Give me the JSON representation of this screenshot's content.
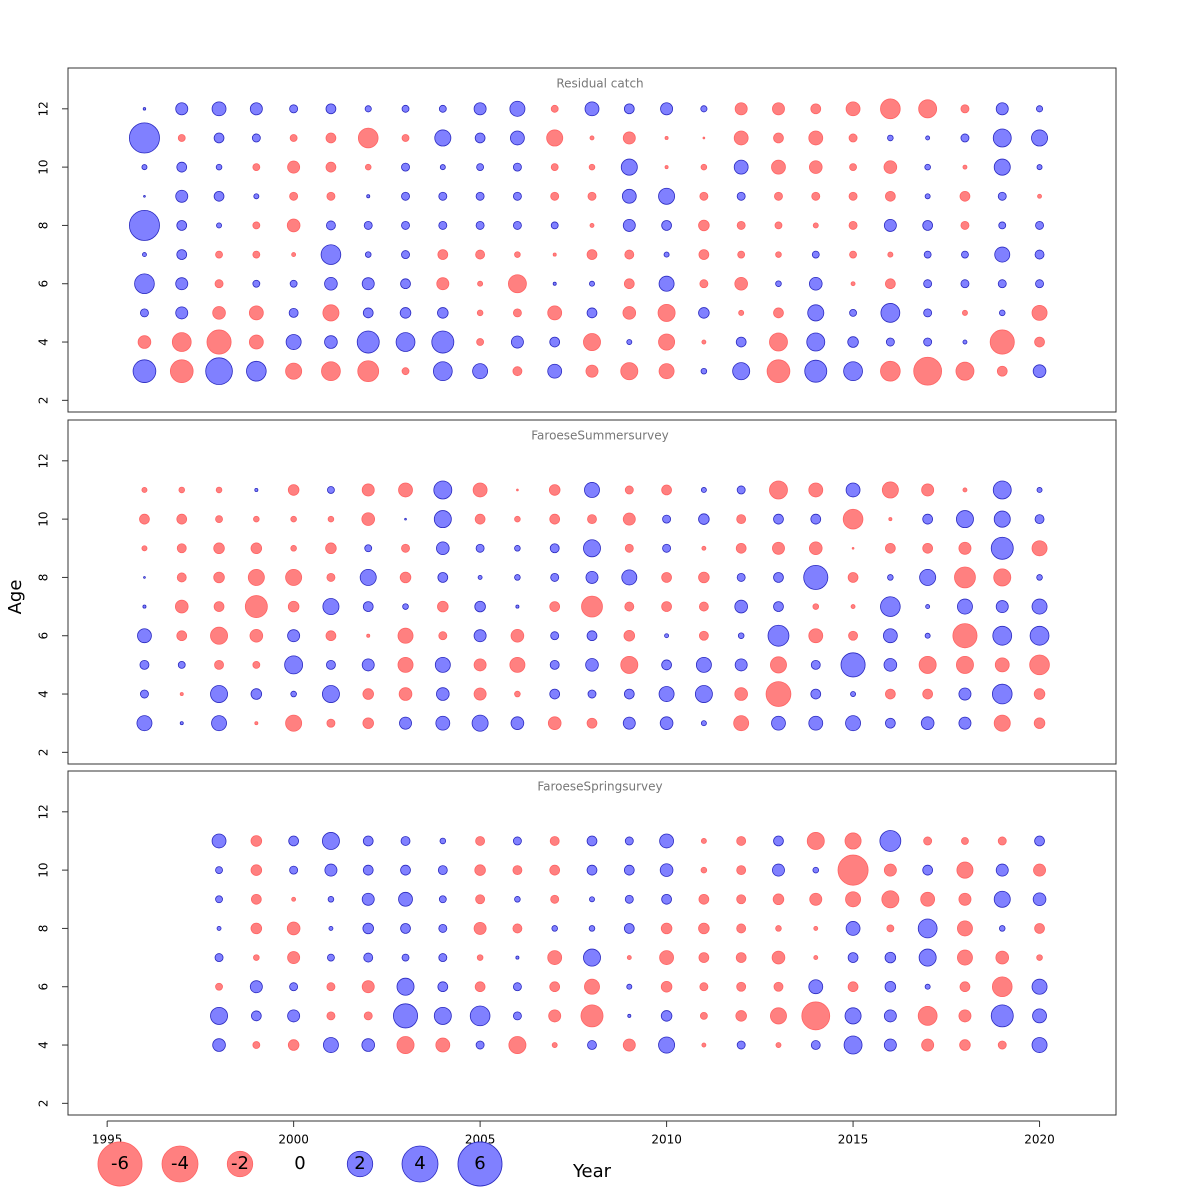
{
  "chart_data": [
    {
      "type": "bubble",
      "title": "Residual catch",
      "x": [
        1996,
        1997,
        1998,
        1999,
        2000,
        2001,
        2002,
        2003,
        2004,
        2005,
        2006,
        2007,
        2008,
        2009,
        2010,
        2011,
        2012,
        2013,
        2014,
        2015,
        2016,
        2017,
        2018,
        2019,
        2020
      ],
      "y": [
        12,
        11,
        10,
        9,
        8,
        7,
        6,
        5,
        4,
        3
      ],
      "values": [
        [
          0.02,
          0.45,
          0.6,
          0.45,
          0.2,
          0.3,
          0.12,
          0.15,
          0.15,
          0.45,
          0.7,
          -0.15,
          0.6,
          0.3,
          0.45,
          0.12,
          -0.45,
          -0.45,
          -0.3,
          -0.6,
          -1.2,
          -1.0,
          -0.2,
          0.45,
          0.12
        ],
        [
          2.8,
          -0.15,
          0.3,
          0.2,
          -0.15,
          -0.3,
          -1.2,
          -0.15,
          0.8,
          0.3,
          0.6,
          -0.8,
          -0.05,
          -0.45,
          -0.03,
          -0.01,
          -0.6,
          -0.3,
          -0.6,
          -0.2,
          0.1,
          0.05,
          0.2,
          1.0,
          0.8
        ],
        [
          0.08,
          0.3,
          0.1,
          -0.15,
          -0.45,
          -0.3,
          -0.1,
          0.2,
          0.08,
          0.15,
          0.2,
          -0.15,
          -0.1,
          0.8,
          -0.03,
          -0.1,
          0.6,
          -0.6,
          -0.5,
          -0.15,
          -0.5,
          0.1,
          -0.05,
          0.8,
          0.08
        ],
        [
          0.01,
          0.45,
          0.3,
          0.08,
          -0.2,
          -0.2,
          0.03,
          0.2,
          0.2,
          0.2,
          0.2,
          -0.2,
          -0.2,
          0.6,
          0.8,
          -0.2,
          0.2,
          -0.2,
          -0.2,
          -0.2,
          -0.3,
          0.08,
          -0.3,
          0.2,
          -0.05
        ],
        [
          2.8,
          0.3,
          0.08,
          -0.15,
          -0.5,
          0.25,
          0.2,
          0.2,
          0.2,
          0.2,
          0.2,
          0.15,
          -0.05,
          0.45,
          0.3,
          -0.35,
          -0.2,
          -0.15,
          -0.08,
          -0.2,
          0.45,
          0.3,
          -0.2,
          0.15,
          0.2
        ],
        [
          0.05,
          0.3,
          -0.15,
          -0.15,
          -0.05,
          1.2,
          0.1,
          0.2,
          -0.3,
          -0.25,
          -0.1,
          -0.03,
          -0.3,
          -0.25,
          0.08,
          -0.3,
          -0.15,
          -0.1,
          0.15,
          -0.15,
          -0.08,
          0.15,
          0.15,
          0.7,
          0.25
        ],
        [
          1.2,
          0.45,
          -0.2,
          0.15,
          0.15,
          0.5,
          0.45,
          0.3,
          -0.45,
          -0.08,
          -1.0,
          0.03,
          0.08,
          -0.3,
          0.7,
          -0.2,
          -0.5,
          0.1,
          0.5,
          -0.05,
          -0.3,
          0.2,
          0.2,
          0.2,
          0.2
        ],
        [
          0.2,
          0.45,
          -0.5,
          -0.6,
          0.25,
          -0.8,
          0.3,
          0.35,
          0.35,
          -0.1,
          -0.2,
          -0.6,
          0.3,
          -0.5,
          -0.9,
          0.35,
          -0.08,
          -0.3,
          0.8,
          0.15,
          1.1,
          0.2,
          -0.08,
          0.1,
          -0.7
        ],
        [
          -0.5,
          -1.1,
          -1.8,
          -0.6,
          0.7,
          0.5,
          1.5,
          1.1,
          1.5,
          -0.15,
          0.45,
          0.3,
          -0.9,
          0.08,
          -0.8,
          -0.05,
          0.3,
          -1.0,
          1.0,
          0.35,
          0.2,
          0.2,
          0.05,
          -1.8,
          -0.3
        ],
        [
          1.6,
          -1.6,
          2.2,
          1.2,
          -0.8,
          -1.1,
          -1.35,
          -0.15,
          1.1,
          0.7,
          -0.25,
          0.6,
          -0.45,
          -0.9,
          -0.7,
          0.1,
          0.9,
          -1.6,
          1.5,
          1.1,
          -1.2,
          -2.4,
          -1.0,
          -0.3,
          0.5
        ]
      ],
      "xlim": [
        1993.95,
        2022.05
      ],
      "ylim": [
        1.6,
        13.4
      ],
      "yticks": [
        2,
        4,
        6,
        8,
        10,
        12
      ]
    },
    {
      "type": "bubble",
      "title": "FaroeseSummersurvey",
      "x": [
        1996,
        1997,
        1998,
        1999,
        2000,
        2001,
        2002,
        2003,
        2004,
        2005,
        2006,
        2007,
        2008,
        2009,
        2010,
        2011,
        2012,
        2013,
        2014,
        2015,
        2016,
        2017,
        2018,
        2019,
        2020
      ],
      "y": [
        11,
        10,
        9,
        8,
        7,
        6,
        5,
        4,
        3
      ],
      "values": [
        [
          -0.08,
          -0.1,
          -0.1,
          0.03,
          -0.35,
          0.15,
          -0.45,
          -0.6,
          1.0,
          -0.6,
          -0.01,
          -0.35,
          0.7,
          -0.2,
          -0.3,
          0.08,
          0.2,
          -1.0,
          -0.6,
          0.6,
          -0.8,
          -0.45,
          -0.05,
          1.0,
          0.08
        ],
        [
          -0.3,
          -0.3,
          -0.15,
          -0.1,
          -0.1,
          -0.1,
          -0.5,
          0.01,
          0.9,
          -0.3,
          -0.1,
          -0.3,
          -0.25,
          -0.45,
          0.2,
          0.35,
          -0.25,
          0.3,
          0.3,
          -1.2,
          -0.03,
          0.3,
          0.9,
          0.8,
          0.25
        ],
        [
          -0.08,
          -0.25,
          -0.35,
          -0.35,
          -0.1,
          -0.35,
          0.15,
          -0.2,
          0.5,
          0.2,
          0.1,
          0.25,
          0.9,
          -0.2,
          0.2,
          -0.05,
          -0.3,
          -0.45,
          -0.5,
          -0.01,
          -0.3,
          -0.3,
          -0.45,
          1.5,
          -0.7
        ],
        [
          0.01,
          -0.25,
          -0.35,
          -0.8,
          -0.8,
          -0.2,
          0.8,
          -0.35,
          0.3,
          0.05,
          0.1,
          0.2,
          0.45,
          0.7,
          -0.3,
          -0.35,
          0.2,
          0.3,
          1.8,
          -0.3,
          0.1,
          0.8,
          -1.35,
          -0.9,
          0.1
        ],
        [
          0.03,
          -0.5,
          -0.3,
          -1.5,
          -0.35,
          0.8,
          0.3,
          0.1,
          -0.35,
          0.35,
          0.03,
          -0.3,
          -1.35,
          -0.25,
          -0.3,
          -0.25,
          0.5,
          0.3,
          -0.1,
          -0.05,
          1.2,
          0.05,
          0.7,
          0.45,
          0.7
        ],
        [
          0.6,
          -0.3,
          -0.9,
          -0.5,
          0.45,
          -0.3,
          -0.03,
          -0.7,
          -0.2,
          0.45,
          -0.5,
          0.2,
          0.3,
          -0.35,
          0.05,
          -0.25,
          0.1,
          1.35,
          -0.6,
          -0.25,
          0.6,
          0.08,
          -1.8,
          1.1,
          1.1
        ],
        [
          0.25,
          0.15,
          -0.25,
          -0.15,
          1.0,
          0.25,
          0.45,
          -0.7,
          0.7,
          -0.45,
          -0.7,
          0.25,
          0.5,
          -0.9,
          0.3,
          0.7,
          0.45,
          -0.8,
          0.25,
          1.8,
          0.5,
          -0.9,
          -0.9,
          -0.6,
          -1.2
        ],
        [
          0.2,
          -0.03,
          0.9,
          0.35,
          0.1,
          0.9,
          -0.35,
          -0.5,
          0.5,
          -0.45,
          -0.1,
          0.3,
          0.2,
          0.3,
          0.7,
          0.9,
          -0.5,
          -1.9,
          0.3,
          0.08,
          -0.3,
          -0.3,
          0.45,
          1.2,
          -0.35
        ],
        [
          0.7,
          0.03,
          0.7,
          -0.03,
          -0.8,
          -0.2,
          -0.35,
          0.45,
          0.6,
          0.8,
          0.5,
          -0.5,
          -0.3,
          0.45,
          0.5,
          0.08,
          -0.7,
          0.6,
          0.6,
          0.7,
          0.3,
          0.5,
          0.45,
          -0.8,
          -0.35
        ]
      ],
      "xlim": [
        1993.95,
        2022.05
      ],
      "ylim": [
        1.6,
        13.4
      ],
      "yticks": [
        2,
        4,
        6,
        8,
        10,
        12
      ]
    },
    {
      "type": "bubble",
      "title": "FaroeseSpringsurvey",
      "x": [
        1998,
        1999,
        2000,
        2001,
        2002,
        2003,
        2004,
        2005,
        2006,
        2007,
        2008,
        2009,
        2010,
        2011,
        2012,
        2013,
        2014,
        2015,
        2016,
        2017,
        2018,
        2019,
        2020
      ],
      "y": [
        11,
        10,
        9,
        8,
        7,
        6,
        5,
        4
      ],
      "values": [
        [
          0.6,
          -0.35,
          0.3,
          0.9,
          0.3,
          0.25,
          0.1,
          -0.25,
          0.2,
          -0.25,
          0.3,
          0.2,
          0.6,
          -0.08,
          -0.25,
          0.3,
          -0.9,
          -0.8,
          1.35,
          -0.2,
          -0.15,
          -0.2,
          0.3
        ],
        [
          0.15,
          -0.35,
          0.2,
          0.45,
          0.3,
          0.3,
          0.25,
          -0.35,
          -0.25,
          -0.3,
          0.3,
          0.3,
          0.5,
          -0.1,
          -0.25,
          0.45,
          0.1,
          -2.8,
          -0.45,
          0.3,
          -0.8,
          0.45,
          -0.45
        ],
        [
          0.15,
          -0.3,
          -0.05,
          0.1,
          0.45,
          0.6,
          0.15,
          -0.25,
          0.1,
          -0.2,
          0.08,
          0.2,
          0.3,
          -0.3,
          -0.25,
          -0.35,
          -0.45,
          -0.7,
          -0.9,
          -0.6,
          -0.45,
          0.8,
          0.5
        ],
        [
          0.05,
          -0.35,
          -0.5,
          0.05,
          0.35,
          0.3,
          0.2,
          -0.45,
          -0.25,
          0.1,
          0.1,
          0.3,
          -0.35,
          -0.35,
          -0.25,
          -0.1,
          -0.05,
          0.6,
          -0.15,
          1.1,
          -0.7,
          0.1,
          -0.3
        ],
        [
          0.2,
          -0.1,
          -0.45,
          0.15,
          0.25,
          0.15,
          0.2,
          -0.1,
          0.03,
          -0.6,
          0.9,
          -0.05,
          -0.6,
          -0.3,
          -0.3,
          -0.5,
          -0.05,
          0.3,
          0.35,
          0.9,
          -0.7,
          -0.5,
          -0.1
        ],
        [
          -0.15,
          0.45,
          0.2,
          -0.2,
          -0.45,
          0.9,
          0.3,
          -0.3,
          0.2,
          -0.3,
          -0.7,
          0.08,
          -0.35,
          -0.2,
          -0.25,
          -0.25,
          0.6,
          -0.3,
          0.35,
          0.08,
          -0.3,
          -1.2,
          0.7
        ],
        [
          0.9,
          0.3,
          0.45,
          -0.2,
          -0.2,
          1.8,
          0.9,
          1.2,
          0.2,
          -0.45,
          -1.5,
          0.03,
          0.35,
          -0.15,
          -0.35,
          -0.8,
          -2.4,
          0.8,
          0.45,
          -1.1,
          -0.45,
          1.5,
          0.6
        ],
        [
          0.5,
          -0.15,
          -0.35,
          0.7,
          0.5,
          -0.9,
          -0.6,
          0.2,
          -0.9,
          -0.08,
          0.25,
          -0.45,
          0.8,
          -0.05,
          0.2,
          -0.08,
          0.25,
          1.0,
          0.45,
          -0.45,
          -0.35,
          -0.2,
          0.7
        ]
      ],
      "xlim": [
        1993.95,
        2022.05
      ],
      "ylim": [
        1.6,
        13.4
      ],
      "yticks": [
        2,
        4,
        6,
        8,
        10,
        12
      ]
    }
  ],
  "axes": {
    "xlabel": "Year",
    "ylabel": "Age",
    "xticks": [
      1995,
      2000,
      2005,
      2010,
      2015,
      2020
    ]
  },
  "legend": {
    "values": [
      -6,
      -4,
      -2,
      0,
      2,
      4,
      6
    ]
  },
  "colors": {
    "positive": "#8080ff",
    "positive_edge": "#2a2ac0",
    "negative": "#ff8080",
    "negative_edge": "#ff6464"
  }
}
